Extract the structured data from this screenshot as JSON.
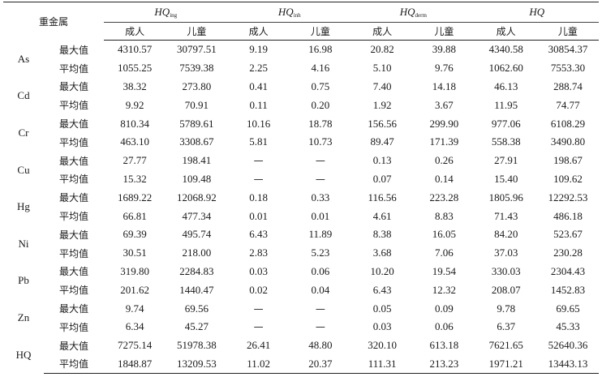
{
  "header": {
    "metal_label": "重金属",
    "groups": [
      {
        "main": "HQ",
        "sub": "ing"
      },
      {
        "main": "HQ",
        "sub": "inh"
      },
      {
        "main": "HQ",
        "sub": "derm"
      },
      {
        "main": "HQ",
        "sub": ""
      }
    ],
    "subcols": [
      "成人",
      "儿童",
      "成人",
      "儿童",
      "成人",
      "儿童",
      "成人",
      "儿童"
    ]
  },
  "rows": [
    {
      "metal": "As",
      "max_label": "最大值",
      "avg_label": "平均值",
      "max": [
        "4310.57",
        "30797.51",
        "9.19",
        "16.98",
        "20.82",
        "39.88",
        "4340.58",
        "30854.37"
      ],
      "avg": [
        "1055.25",
        "7539.38",
        "2.25",
        "4.16",
        "5.10",
        "9.76",
        "1062.60",
        "7553.30"
      ]
    },
    {
      "metal": "Cd",
      "max_label": "最大值",
      "avg_label": "平均值",
      "max": [
        "38.32",
        "273.80",
        "0.41",
        "0.75",
        "7.40",
        "14.18",
        "46.13",
        "288.74"
      ],
      "avg": [
        "9.92",
        "70.91",
        "0.11",
        "0.20",
        "1.92",
        "3.67",
        "11.95",
        "74.77"
      ]
    },
    {
      "metal": "Cr",
      "max_label": "最大值",
      "avg_label": "平均值",
      "max": [
        "810.34",
        "5789.61",
        "10.16",
        "18.78",
        "156.56",
        "299.90",
        "977.06",
        "6108.29"
      ],
      "avg": [
        "463.10",
        "3308.67",
        "5.81",
        "10.73",
        "89.47",
        "171.39",
        "558.38",
        "3490.80"
      ]
    },
    {
      "metal": "Cu",
      "max_label": "最大值",
      "avg_label": "平均值",
      "max": [
        "27.77",
        "198.41",
        "—",
        "—",
        "0.13",
        "0.26",
        "27.91",
        "198.67"
      ],
      "avg": [
        "15.32",
        "109.48",
        "—",
        "—",
        "0.07",
        "0.14",
        "15.40",
        "109.62"
      ]
    },
    {
      "metal": "Hg",
      "max_label": "最大值",
      "avg_label": "平均值",
      "max": [
        "1689.22",
        "12068.92",
        "0.18",
        "0.33",
        "116.56",
        "223.28",
        "1805.96",
        "12292.53"
      ],
      "avg": [
        "66.81",
        "477.34",
        "0.01",
        "0.01",
        "4.61",
        "8.83",
        "71.43",
        "486.18"
      ]
    },
    {
      "metal": "Ni",
      "max_label": "最大值",
      "avg_label": "平均值",
      "max": [
        "69.39",
        "495.74",
        "6.43",
        "11.89",
        "8.38",
        "16.05",
        "84.20",
        "523.67"
      ],
      "avg": [
        "30.51",
        "218.00",
        "2.83",
        "5.23",
        "3.68",
        "7.06",
        "37.03",
        "230.28"
      ]
    },
    {
      "metal": "Pb",
      "max_label": "最大值",
      "avg_label": "平均值",
      "max": [
        "319.80",
        "2284.83",
        "0.03",
        "0.06",
        "10.20",
        "19.54",
        "330.03",
        "2304.43"
      ],
      "avg": [
        "201.62",
        "1440.47",
        "0.02",
        "0.04",
        "6.43",
        "12.32",
        "208.07",
        "1452.83"
      ]
    },
    {
      "metal": "Zn",
      "max_label": "最大值",
      "avg_label": "平均值",
      "max": [
        "9.74",
        "69.56",
        "—",
        "—",
        "0.05",
        "0.09",
        "9.78",
        "69.65"
      ],
      "avg": [
        "6.34",
        "45.27",
        "—",
        "—",
        "0.03",
        "0.06",
        "6.37",
        "45.33"
      ]
    },
    {
      "metal": "HQ",
      "max_label": "最大值",
      "avg_label": "平均值",
      "max": [
        "7275.14",
        "51978.38",
        "26.41",
        "48.80",
        "320.10",
        "613.18",
        "7621.65",
        "52640.36"
      ],
      "avg": [
        "1848.87",
        "13209.53",
        "11.02",
        "20.37",
        "111.31",
        "213.23",
        "1971.21",
        "13443.13"
      ]
    }
  ]
}
